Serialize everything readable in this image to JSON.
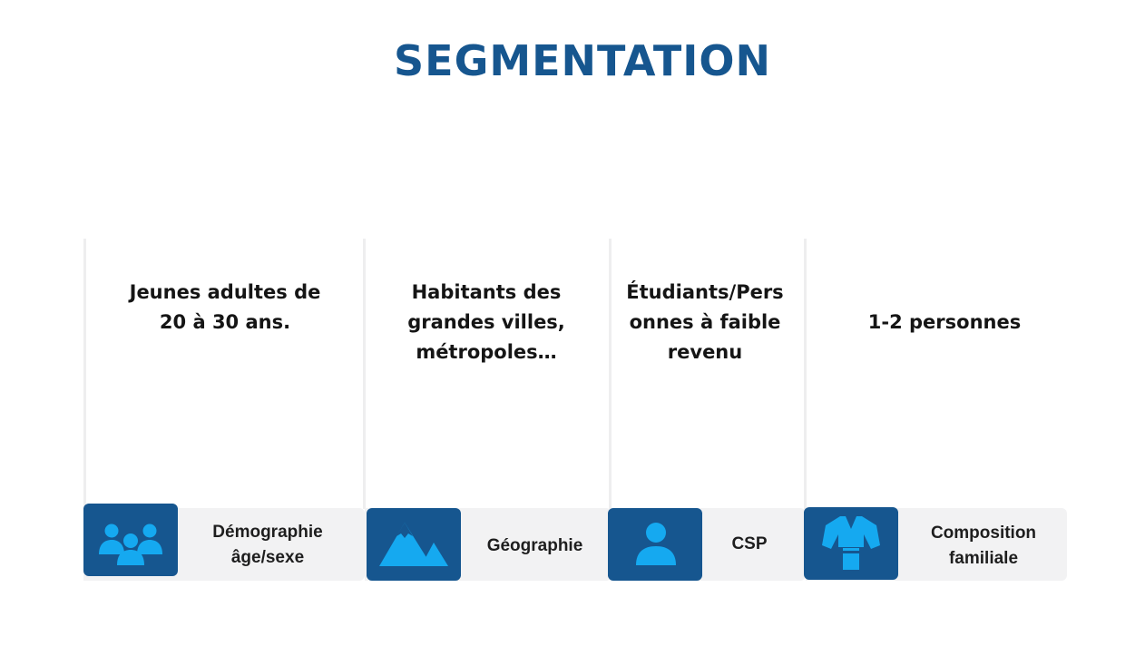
{
  "title": "SEGMENTATION",
  "columns": [
    {
      "text": "Jeunes adultes de 20 à 30 ans.",
      "category_line1": "Démographie",
      "category_line2": "âge/sexe",
      "icon": "group-of-people-icon"
    },
    {
      "text": "Habitants des grandes villes, métropoles…",
      "category_line1": "Géographie",
      "category_line2": "",
      "icon": "mountain-icon"
    },
    {
      "text": "Étudiants/Pers onnes à faible revenu",
      "category_line1": "CSP",
      "category_line2": "",
      "icon": "person-icon"
    },
    {
      "text": "1-2 personnes",
      "category_line1": "Composition",
      "category_line2": "familiale",
      "icon": "kimono-icon"
    }
  ],
  "colors": {
    "title": "#16568f",
    "icon_box": "#16568f",
    "icon_glyph": "#15a9f0",
    "bar": "#f2f2f3",
    "divider": "#eeeeef"
  }
}
